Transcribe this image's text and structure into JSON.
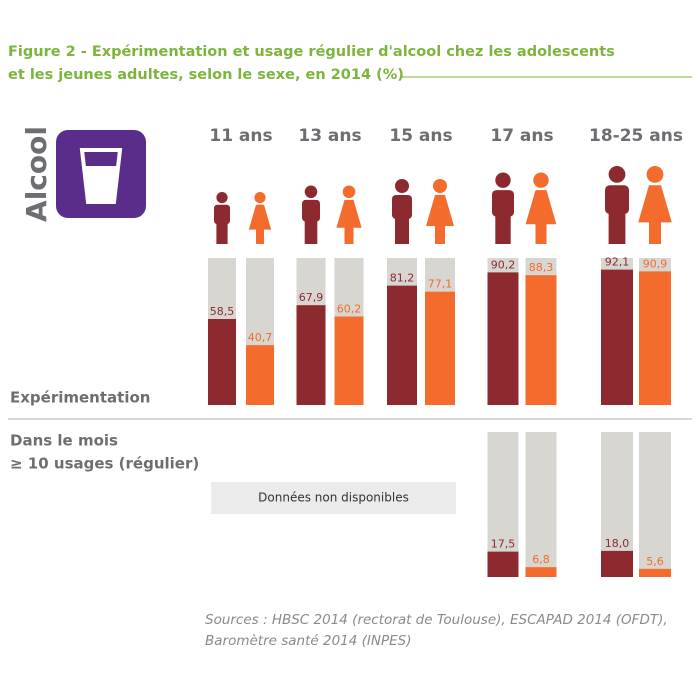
{
  "chart_data": {
    "type": "bar",
    "title": [
      "Figure 2 - Expérimentation et usage régulier d'alcool chez les adolescents",
      "et les jeunes adultes, selon le sexe, en 2014 (%)"
    ],
    "icon_label": "Alcool",
    "categories": [
      "11 ans",
      "13 ans",
      "15 ans",
      "17 ans",
      "18-25 ans"
    ],
    "background_color": "#d8d6d1",
    "panels": [
      {
        "label": [
          "Expérimentation"
        ],
        "ylim": [
          0,
          100
        ],
        "series": [
          {
            "color": "#8c2a2f",
            "values": [
              58.5,
              67.9,
              81.2,
              90.2,
              92.1
            ],
            "value_labels": [
              "58,5",
              "67,9",
              "81,2",
              "90,2",
              "92,1"
            ]
          },
          {
            "color": "#f36b2d",
            "values": [
              40.7,
              60.2,
              77.1,
              88.3,
              90.9
            ],
            "value_labels": [
              "40,7",
              "60,2",
              "77,1",
              "88,3",
              "90,9"
            ]
          }
        ]
      },
      {
        "label": [
          "Dans le mois",
          "≥ 10 usages (régulier)"
        ],
        "note": "Données non disponibles",
        "ylim": [
          0,
          100
        ],
        "series": [
          {
            "color": "#8c2a2f",
            "values": [
              null,
              null,
              null,
              17.5,
              18.0
            ],
            "value_labels": [
              null,
              null,
              null,
              "17,5",
              "18,0"
            ]
          },
          {
            "color": "#f36b2d",
            "values": [
              null,
              null,
              null,
              6.8,
              5.6
            ],
            "value_labels": [
              null,
              null,
              null,
              "6,8",
              "5,6"
            ]
          }
        ]
      }
    ],
    "source": [
      "Sources : HBSC 2014 (rectorat de Toulouse), ESCAPAD 2014 (OFDT),",
      "Baromètre santé 2014 (INPES)"
    ]
  }
}
